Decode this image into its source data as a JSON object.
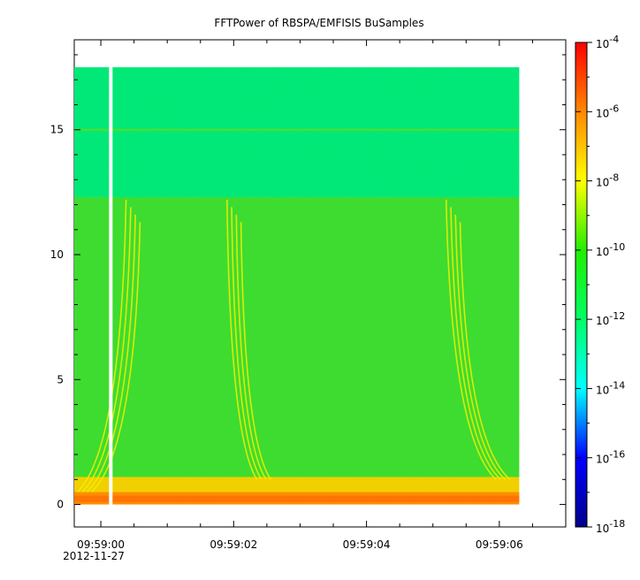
{
  "chart_data": {
    "type": "heatmap",
    "title": "FFTPower of RBSPA/EMFISIS  BuSamples",
    "xlabel": "",
    "ylabel": "",
    "x_ticks": [
      {
        "t": 0,
        "label": "09:59:00",
        "sublabel": "2012-11-27"
      },
      {
        "t": 2,
        "label": "09:59:02",
        "sublabel": ""
      },
      {
        "t": 4,
        "label": "09:59:04",
        "sublabel": ""
      },
      {
        "t": 6,
        "label": "09:59:06",
        "sublabel": ""
      }
    ],
    "x_minor_ticks": [
      -0.5,
      0.5,
      1,
      1.5,
      2.5,
      3,
      3.5,
      4.5,
      5,
      5.5,
      6.5,
      7
    ],
    "xlim": [
      -0.4,
      7.0
    ],
    "x_units": "seconds after 09:59:00",
    "ylim": [
      -0.9,
      18.6
    ],
    "y_ticks": [
      0,
      5,
      10,
      15
    ],
    "data_x_range": [
      -0.4,
      6.3
    ],
    "data_y_range": [
      0,
      17.5
    ],
    "data_gap_x": 0.15,
    "colorbar": {
      "scale": "log",
      "range": [
        1e-18,
        0.0001
      ],
      "tick_labels": [
        {
          "exp": -4,
          "text": "10",
          "sup": "-4"
        },
        {
          "exp": -6,
          "text": "10",
          "sup": "-6"
        },
        {
          "exp": -8,
          "text": "10",
          "sup": "-8"
        },
        {
          "exp": -10,
          "text": "10",
          "sup": "-10"
        },
        {
          "exp": -12,
          "text": "10",
          "sup": "-12"
        },
        {
          "exp": -14,
          "text": "10",
          "sup": "-14"
        },
        {
          "exp": -16,
          "text": "10",
          "sup": "-16"
        },
        {
          "exp": -18,
          "text": "10",
          "sup": "-18"
        }
      ]
    },
    "colormap": [
      "#00008b",
      "#0000ff",
      "#00ffff",
      "#00ff66",
      "#22ee00",
      "#ffff00",
      "#ff8800",
      "#ff0000"
    ],
    "bands": [
      {
        "y_from": 0,
        "y_to": 0.5,
        "color": "#ff8c00"
      },
      {
        "y_from": 0.5,
        "y_to": 1.1,
        "color": "#f0d000"
      },
      {
        "y_from": 1.1,
        "y_to": 12.3,
        "color": "#3ddc30"
      },
      {
        "y_from": 12.3,
        "y_to": 17.5,
        "color": "#00e878"
      }
    ],
    "line_15hz": {
      "y": 15,
      "color": "#55dd22"
    },
    "chorus_elements": [
      {
        "x_start": 0.38,
        "x_end": -0.35,
        "y_top": 12.2,
        "y_bottom": 0.5
      },
      {
        "x_start": 1.9,
        "x_end": 2.35,
        "y_top": 12.2,
        "y_bottom": 1.0
      },
      {
        "x_start": 5.2,
        "x_end": 5.95,
        "y_top": 12.2,
        "y_bottom": 1.0
      }
    ]
  }
}
